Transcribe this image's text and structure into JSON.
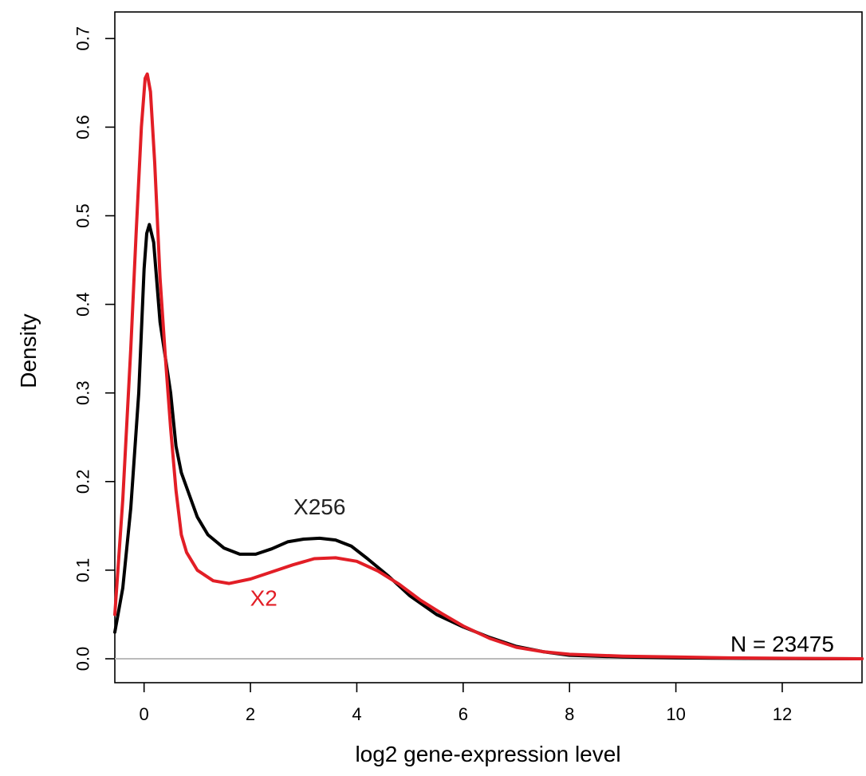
{
  "chart_data": {
    "type": "line",
    "title": "",
    "xlabel": "log2 gene-expression level",
    "ylabel": "Density",
    "xlim": [
      -0.55,
      13.5
    ],
    "ylim": [
      -0.027,
      0.73
    ],
    "x_ticks": [
      0,
      2,
      4,
      6,
      8,
      10,
      12
    ],
    "x_tick_labels": [
      "0",
      "2",
      "4",
      "6",
      "8",
      "10",
      "12"
    ],
    "y_ticks": [
      0.0,
      0.1,
      0.2,
      0.3,
      0.4,
      0.5,
      0.6,
      0.7
    ],
    "y_tick_labels": [
      "0.0",
      "0.1",
      "0.2",
      "0.3",
      "0.4",
      "0.5",
      "0.6",
      "0.7"
    ],
    "grid": false,
    "baseline": {
      "y": 0,
      "color": "#bbbbbb"
    },
    "series": [
      {
        "name": "X256",
        "color": "#000000",
        "points": [
          [
            -0.55,
            0.03
          ],
          [
            -0.4,
            0.08
          ],
          [
            -0.25,
            0.17
          ],
          [
            -0.1,
            0.3
          ],
          [
            0.0,
            0.44
          ],
          [
            0.05,
            0.48
          ],
          [
            0.1,
            0.49
          ],
          [
            0.18,
            0.47
          ],
          [
            0.3,
            0.38
          ],
          [
            0.4,
            0.34
          ],
          [
            0.5,
            0.3
          ],
          [
            0.6,
            0.24
          ],
          [
            0.7,
            0.21
          ],
          [
            0.85,
            0.185
          ],
          [
            1.0,
            0.16
          ],
          [
            1.2,
            0.14
          ],
          [
            1.5,
            0.125
          ],
          [
            1.8,
            0.118
          ],
          [
            2.1,
            0.118
          ],
          [
            2.4,
            0.124
          ],
          [
            2.7,
            0.132
          ],
          [
            3.0,
            0.135
          ],
          [
            3.3,
            0.136
          ],
          [
            3.6,
            0.134
          ],
          [
            3.9,
            0.127
          ],
          [
            4.2,
            0.113
          ],
          [
            4.6,
            0.093
          ],
          [
            5.0,
            0.071
          ],
          [
            5.5,
            0.05
          ],
          [
            6.0,
            0.036
          ],
          [
            6.5,
            0.024
          ],
          [
            7.0,
            0.014
          ],
          [
            7.5,
            0.008
          ],
          [
            8.0,
            0.004
          ],
          [
            9.0,
            0.002
          ],
          [
            10.0,
            0.001
          ],
          [
            11.0,
            0.0005
          ],
          [
            12.0,
            0.0002
          ],
          [
            13.5,
            0.0
          ]
        ]
      },
      {
        "name": "X2",
        "color": "#e21e26",
        "points": [
          [
            -0.55,
            0.05
          ],
          [
            -0.4,
            0.18
          ],
          [
            -0.25,
            0.35
          ],
          [
            -0.15,
            0.48
          ],
          [
            -0.05,
            0.6
          ],
          [
            0.02,
            0.655
          ],
          [
            0.06,
            0.66
          ],
          [
            0.12,
            0.64
          ],
          [
            0.2,
            0.56
          ],
          [
            0.3,
            0.43
          ],
          [
            0.4,
            0.34
          ],
          [
            0.5,
            0.26
          ],
          [
            0.6,
            0.19
          ],
          [
            0.7,
            0.14
          ],
          [
            0.8,
            0.12
          ],
          [
            1.0,
            0.1
          ],
          [
            1.3,
            0.088
          ],
          [
            1.6,
            0.085
          ],
          [
            2.0,
            0.09
          ],
          [
            2.4,
            0.098
          ],
          [
            2.8,
            0.106
          ],
          [
            3.2,
            0.113
          ],
          [
            3.6,
            0.114
          ],
          [
            4.0,
            0.11
          ],
          [
            4.4,
            0.099
          ],
          [
            4.8,
            0.084
          ],
          [
            5.2,
            0.066
          ],
          [
            5.6,
            0.051
          ],
          [
            6.0,
            0.037
          ],
          [
            6.5,
            0.023
          ],
          [
            7.0,
            0.013
          ],
          [
            7.5,
            0.008
          ],
          [
            8.0,
            0.005
          ],
          [
            9.0,
            0.003
          ],
          [
            10.0,
            0.002
          ],
          [
            11.0,
            0.001
          ],
          [
            12.0,
            0.0005
          ],
          [
            13.5,
            0.0
          ]
        ]
      }
    ],
    "annotations": [
      {
        "text": "X256",
        "x": 3.3,
        "y": 0.163,
        "color": "#222222"
      },
      {
        "text": "X2",
        "x": 2.25,
        "y": 0.06,
        "color": "#e21e26"
      },
      {
        "text": "N = 23475",
        "x": 12.0,
        "y": 0.008,
        "color": "#000000"
      }
    ]
  }
}
